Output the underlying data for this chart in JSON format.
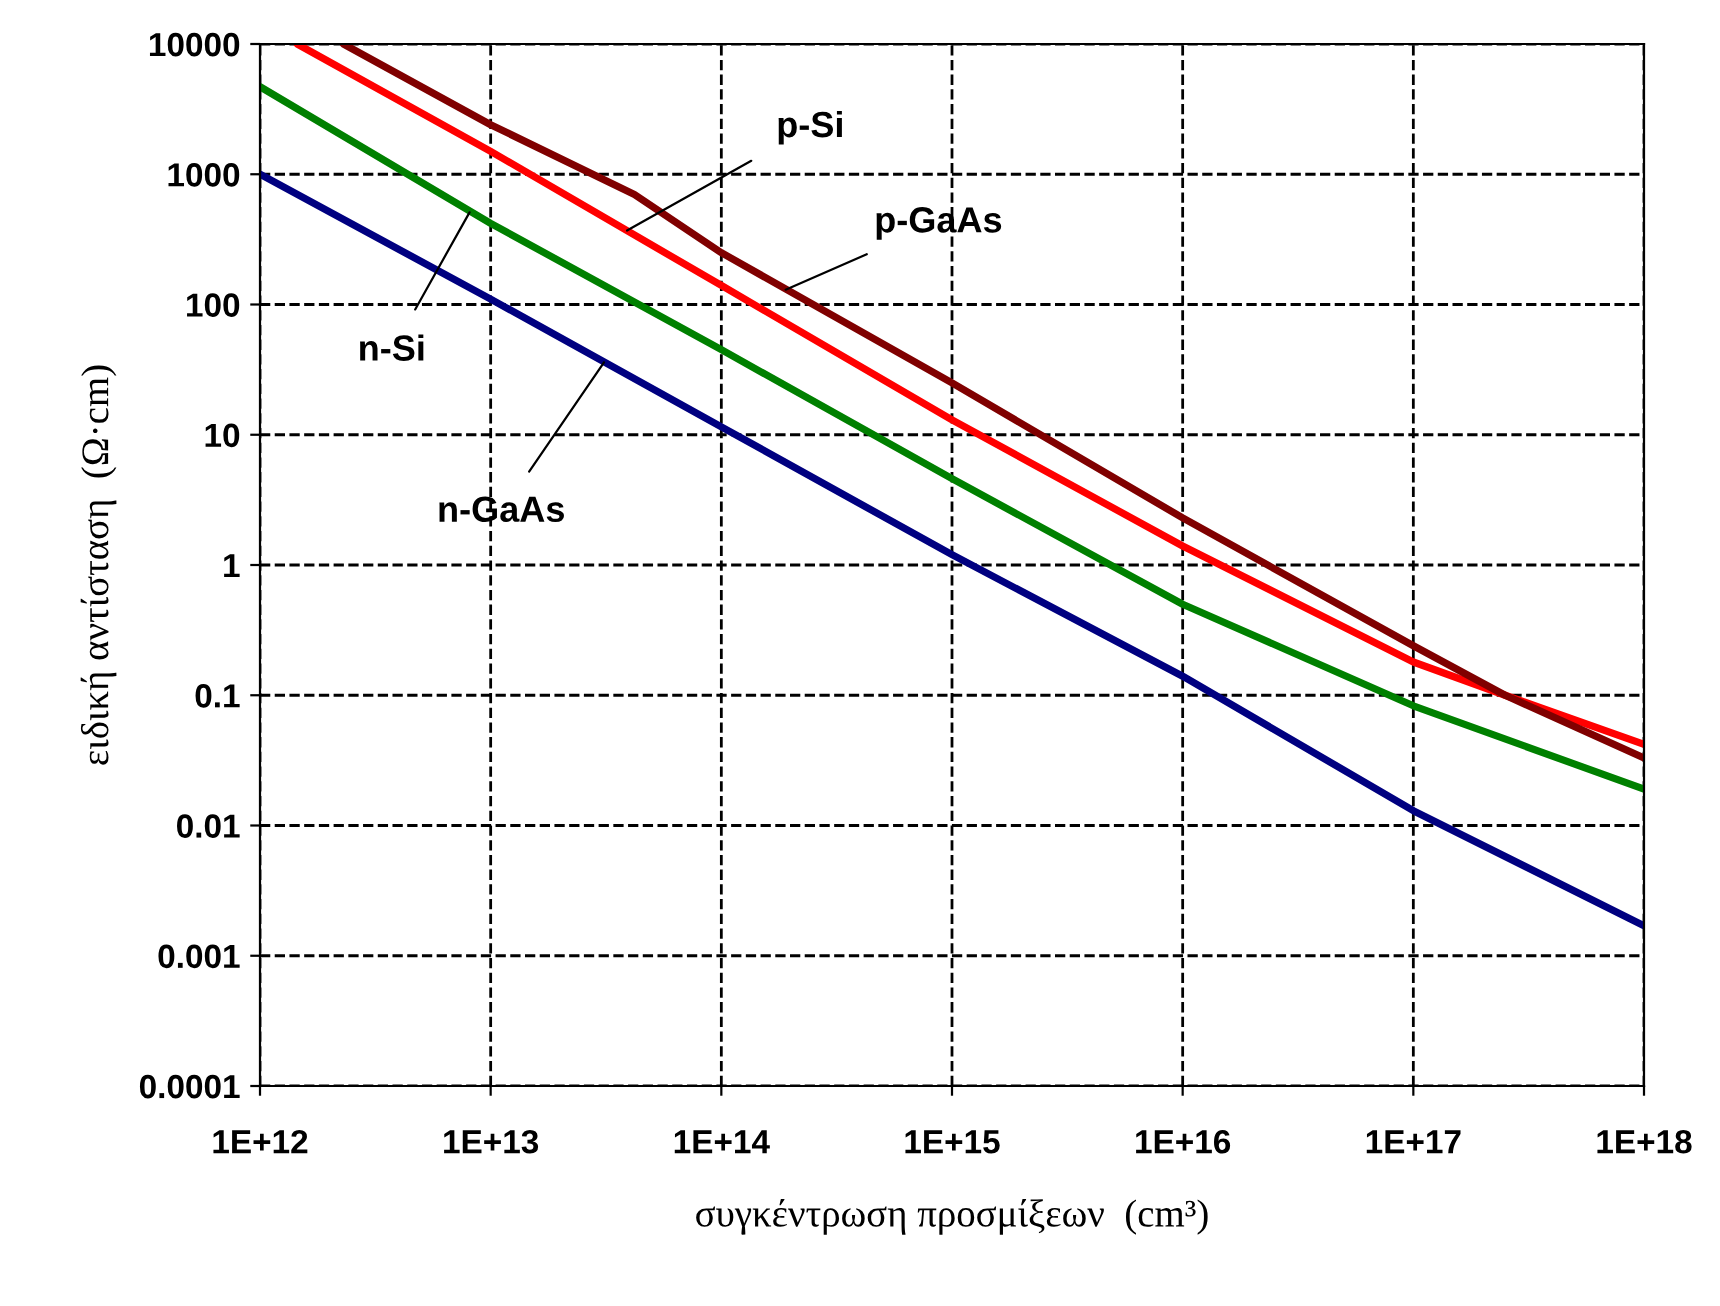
{
  "chart_data": {
    "type": "line",
    "xlabel": "συγκέντρωση προσμίξεων  (cm³)",
    "ylabel": "ειδική αντίσταση  (Ω·cm)",
    "log": "xy",
    "grid": true,
    "legend": false,
    "xlim": [
      1000000000000.0,
      1e+18
    ],
    "ylim": [
      0.0001,
      10000
    ],
    "xticks": [
      {
        "value": 1000000000000.0,
        "label": "1E+12"
      },
      {
        "value": 10000000000000.0,
        "label": "1E+13"
      },
      {
        "value": 100000000000000.0,
        "label": "1E+14"
      },
      {
        "value": 1000000000000000.0,
        "label": "1E+15"
      },
      {
        "value": 1e+16,
        "label": "1E+16"
      },
      {
        "value": 1e+17,
        "label": "1E+17"
      },
      {
        "value": 1e+18,
        "label": "1E+18"
      }
    ],
    "yticks": [
      0.0001,
      0.001,
      0.01,
      0.1,
      1,
      10,
      100,
      1000,
      10000
    ],
    "series": [
      {
        "color": "#ff0000",
        "x": [
          1450000000000.0,
          10000000000000.0,
          100000000000000.0,
          1000000000000000.0,
          1e+16,
          1e+17,
          2.5e+17,
          1e+18
        ],
        "values": [
          10000,
          1500,
          140,
          13,
          1.4,
          0.18,
          0.1,
          0.042
        ]
      },
      {
        "color": "#800000",
        "x": [
          2300000000000.0,
          10000000000000.0,
          42000000000000.0,
          100000000000000.0,
          1000000000000000.0,
          1e+16,
          1e+17,
          2.5e+17,
          1e+18
        ],
        "values": [
          10000,
          2400,
          700,
          250,
          25,
          2.3,
          0.24,
          0.1,
          0.033
        ]
      },
      {
        "color": "#008000",
        "x": [
          1000000000000.0,
          10000000000000.0,
          100000000000000.0,
          1000000000000000.0,
          1e+16,
          1e+17,
          1e+18
        ],
        "values": [
          4700,
          420,
          45,
          4.6,
          0.5,
          0.083,
          0.019
        ]
      },
      {
        "color": "#000080",
        "x": [
          1000000000000.0,
          10000000000000.0,
          100000000000000.0,
          1000000000000000.0,
          1e+16,
          1e+17,
          1e+18
        ],
        "values": [
          1000,
          110,
          11.5,
          1.2,
          0.14,
          0.013,
          0.0017
        ]
      }
    ],
    "annotations": [
      {
        "text": "p-Si",
        "x": 39000000000000.0,
        "y": 370
      },
      {
        "text": "p-GaAs",
        "x": 190000000000000.0,
        "y": 130
      },
      {
        "text": "n-Si",
        "x": 8100000000000.0,
        "y": 510
      },
      {
        "text": "n-GaAs",
        "x": 31000000000000.0,
        "y": 36
      }
    ]
  }
}
